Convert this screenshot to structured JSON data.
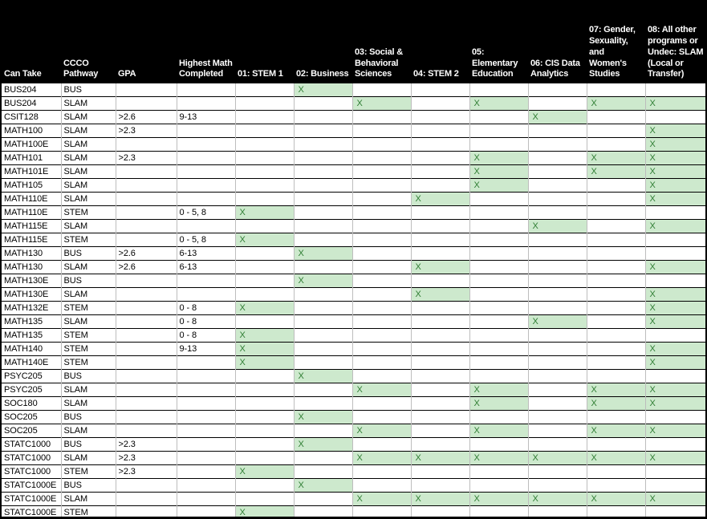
{
  "table": {
    "headers": {
      "can_take": "Can Take",
      "pathway": "CCCO\nPathway",
      "gpa": "GPA",
      "math": "Highest Math\nCompleted"
    },
    "program_columns": [
      {
        "id": "01",
        "label": "01: STEM 1"
      },
      {
        "id": "02",
        "label": "02: Business"
      },
      {
        "id": "03",
        "label": "03: Social &\nBehavioral\nSciences"
      },
      {
        "id": "04",
        "label": "04: STEM 2"
      },
      {
        "id": "05",
        "label": "05:\nElementary\nEducation"
      },
      {
        "id": "06",
        "label": "06: CIS Data\nAnalytics"
      },
      {
        "id": "07",
        "label": "07: Gender,\nSexuality, and\nWomen's\nStudies"
      },
      {
        "id": "08",
        "label": "08: All other\nprograms or\nUndec: SLAM\n(Local or\nTransfer)"
      }
    ],
    "mark": "X",
    "rows": [
      {
        "course": "BUS204",
        "pathway": "BUS",
        "gpa": "",
        "math": "",
        "marks": [
          "02"
        ]
      },
      {
        "course": "BUS204",
        "pathway": "SLAM",
        "gpa": "",
        "math": "",
        "marks": [
          "03",
          "05",
          "07",
          "08"
        ]
      },
      {
        "course": "CSIT128",
        "pathway": "SLAM",
        "gpa": ">2.6",
        "math": "9-13",
        "marks": [
          "06"
        ]
      },
      {
        "course": "MATH100",
        "pathway": "SLAM",
        "gpa": ">2.3",
        "math": "",
        "marks": [
          "08"
        ]
      },
      {
        "course": "MATH100E",
        "pathway": "SLAM",
        "gpa": "",
        "math": "",
        "marks": [
          "08"
        ]
      },
      {
        "course": "MATH101",
        "pathway": "SLAM",
        "gpa": ">2.3",
        "math": "",
        "marks": [
          "05",
          "07",
          "08"
        ]
      },
      {
        "course": "MATH101E",
        "pathway": "SLAM",
        "gpa": "",
        "math": "",
        "marks": [
          "05",
          "07",
          "08"
        ]
      },
      {
        "course": "MATH105",
        "pathway": "SLAM",
        "gpa": "",
        "math": "",
        "marks": [
          "05",
          "08"
        ]
      },
      {
        "course": "MATH110E",
        "pathway": "SLAM",
        "gpa": "",
        "math": "",
        "marks": [
          "04",
          "08"
        ]
      },
      {
        "course": "MATH110E",
        "pathway": "STEM",
        "gpa": "",
        "math": "0 - 5, 8",
        "marks": [
          "01"
        ]
      },
      {
        "course": "MATH115E",
        "pathway": "SLAM",
        "gpa": "",
        "math": "",
        "marks": [
          "06",
          "08"
        ]
      },
      {
        "course": "MATH115E",
        "pathway": "STEM",
        "gpa": "",
        "math": "0 - 5, 8",
        "marks": [
          "01"
        ]
      },
      {
        "course": "MATH130",
        "pathway": "BUS",
        "gpa": ">2.6",
        "math": "6-13",
        "marks": [
          "02"
        ]
      },
      {
        "course": "MATH130",
        "pathway": "SLAM",
        "gpa": ">2.6",
        "math": "6-13",
        "marks": [
          "04",
          "08"
        ]
      },
      {
        "course": "MATH130E",
        "pathway": "BUS",
        "gpa": "",
        "math": "",
        "marks": [
          "02"
        ]
      },
      {
        "course": "MATH130E",
        "pathway": "SLAM",
        "gpa": "",
        "math": "",
        "marks": [
          "04",
          "08"
        ]
      },
      {
        "course": "MATH132E",
        "pathway": "STEM",
        "gpa": "",
        "math": "0 - 8",
        "marks": [
          "01",
          "08"
        ]
      },
      {
        "course": "MATH135",
        "pathway": "SLAM",
        "gpa": "",
        "math": "0 - 8",
        "marks": [
          "06",
          "08"
        ]
      },
      {
        "course": "MATH135",
        "pathway": "STEM",
        "gpa": "",
        "math": "0 - 8",
        "marks": [
          "01"
        ]
      },
      {
        "course": "MATH140",
        "pathway": "STEM",
        "gpa": "",
        "math": "9-13",
        "marks": [
          "01",
          "08"
        ]
      },
      {
        "course": "MATH140E",
        "pathway": "STEM",
        "gpa": "",
        "math": "",
        "marks": [
          "01",
          "08"
        ]
      },
      {
        "course": "PSYC205",
        "pathway": "BUS",
        "gpa": "",
        "math": "",
        "marks": [
          "02"
        ]
      },
      {
        "course": "PSYC205",
        "pathway": "SLAM",
        "gpa": "",
        "math": "",
        "marks": [
          "03",
          "05",
          "07",
          "08"
        ]
      },
      {
        "course": "SOC180",
        "pathway": "SLAM",
        "gpa": "",
        "math": "",
        "marks": [
          "05",
          "07",
          "08"
        ]
      },
      {
        "course": "SOC205",
        "pathway": "BUS",
        "gpa": "",
        "math": "",
        "marks": [
          "02"
        ]
      },
      {
        "course": "SOC205",
        "pathway": "SLAM",
        "gpa": "",
        "math": "",
        "marks": [
          "03",
          "05",
          "07",
          "08"
        ]
      },
      {
        "course": "STATC1000",
        "pathway": "BUS",
        "gpa": ">2.3",
        "math": "",
        "marks": [
          "02"
        ]
      },
      {
        "course": "STATC1000",
        "pathway": "SLAM",
        "gpa": ">2.3",
        "math": "",
        "marks": [
          "03",
          "04",
          "05",
          "06",
          "07",
          "08"
        ]
      },
      {
        "course": "STATC1000",
        "pathway": "STEM",
        "gpa": ">2.3",
        "math": "",
        "marks": [
          "01"
        ]
      },
      {
        "course": "STATC1000E",
        "pathway": "BUS",
        "gpa": "",
        "math": "",
        "marks": [
          "02"
        ]
      },
      {
        "course": "STATC1000E",
        "pathway": "SLAM",
        "gpa": "",
        "math": "",
        "marks": [
          "03",
          "04",
          "05",
          "06",
          "07",
          "08"
        ]
      },
      {
        "course": "STATC1000E",
        "pathway": "STEM",
        "gpa": "",
        "math": "",
        "marks": [
          "01"
        ]
      }
    ]
  },
  "colors": {
    "header_bg": "#000000",
    "header_text": "#ffffff",
    "mark_fill": "#cde9cd",
    "mark_text": "#2e7d32",
    "grid_horizontal": "#000000",
    "grid_vertical": "#bdbdbd"
  }
}
